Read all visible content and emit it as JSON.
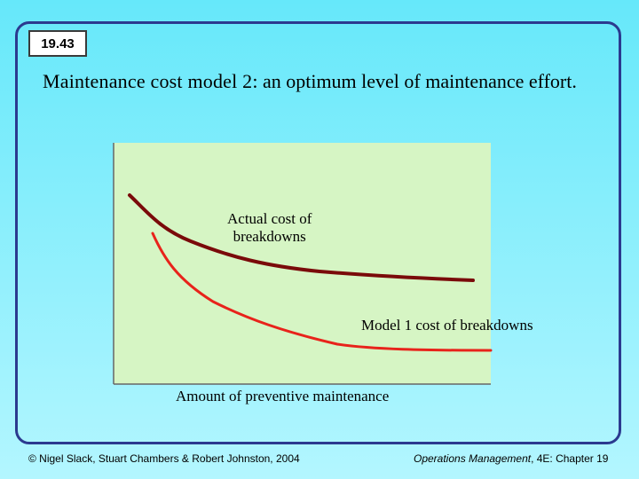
{
  "slide": {
    "number": "19.43",
    "title_bold": "Maintenance cost model 2",
    "title_rest": ": an optimum level of maintenance effort."
  },
  "diagram": {
    "curve_actual_label_line1": "Actual cost of",
    "curve_actual_label_line2": "breakdowns",
    "curve_model1_label": "Model 1 cost of breakdowns",
    "x_axis_label": "Amount of preventive maintenance",
    "colors": {
      "plot_background": "#d6f5c4",
      "actual_curve": "#7a0a0a",
      "model1_curve": "#e8231b",
      "frame_border": "#2b3a8f"
    }
  },
  "footer": {
    "copyright": "© Nigel Slack, Stuart Chambers & Robert Johnston, 2004",
    "book_title": "Operations Management",
    "book_rest": ", 4E: Chapter 19"
  }
}
